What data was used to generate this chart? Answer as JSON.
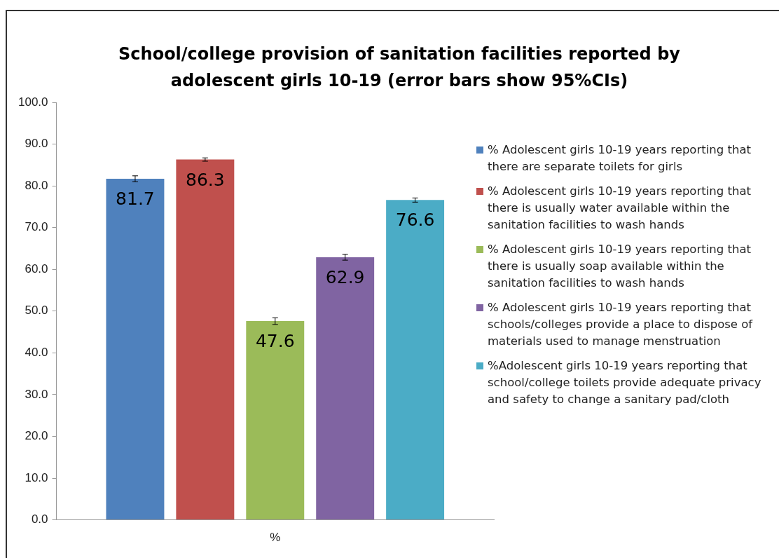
{
  "chart_data": {
    "type": "bar",
    "title": "School/college provision of sanitation facilities reported by adolescent girls 10-19 (error bars show 95%CIs)",
    "categories": [
      "%"
    ],
    "series": [
      {
        "name": "% Adolescent girls 10-19 years reporting that there are separate toilets for girls",
        "color": "#4f81bd",
        "values": [
          81.7
        ],
        "errors": [
          0.7
        ]
      },
      {
        "name": "% Adolescent girls 10-19 years reporting that there is usually water available within the sanitation facilities to wash hands",
        "color": "#c0504d",
        "values": [
          86.3
        ],
        "errors": [
          0.4
        ]
      },
      {
        "name": "% Adolescent girls 10-19 years reporting that there is usually soap available within the sanitation facilities to wash hands",
        "color": "#9bbb59",
        "values": [
          47.6
        ],
        "errors": [
          0.8
        ]
      },
      {
        "name": "% Adolescent girls 10-19 years reporting that schools/colleges provide a place to dispose of materials used to manage menstruation",
        "color": "#8064a2",
        "values": [
          62.9
        ],
        "errors": [
          0.7
        ]
      },
      {
        "name": "%Adolescent girls 10-19 years reporting that school/college toilets provide adequate privacy and safety to change a sanitary pad/cloth",
        "color": "#4bacc6",
        "values": [
          76.6
        ],
        "errors": [
          0.5
        ]
      }
    ],
    "ylim": [
      0,
      100
    ],
    "yticks": [
      {
        "value": 0,
        "label": "0.0"
      },
      {
        "value": 10,
        "label": "10.0"
      },
      {
        "value": 20,
        "label": "20.0"
      },
      {
        "value": 30,
        "label": "30.0"
      },
      {
        "value": 40,
        "label": "40.0"
      },
      {
        "value": 50,
        "label": "50.0"
      },
      {
        "value": 60,
        "label": "60.0"
      },
      {
        "value": 70,
        "label": "70.0"
      },
      {
        "value": 80,
        "label": "80.0"
      },
      {
        "value": 90,
        "label": "90.0"
      },
      {
        "value": 100,
        "label": "100.0"
      }
    ],
    "grid": false,
    "legend": "right",
    "data_labels": true
  }
}
